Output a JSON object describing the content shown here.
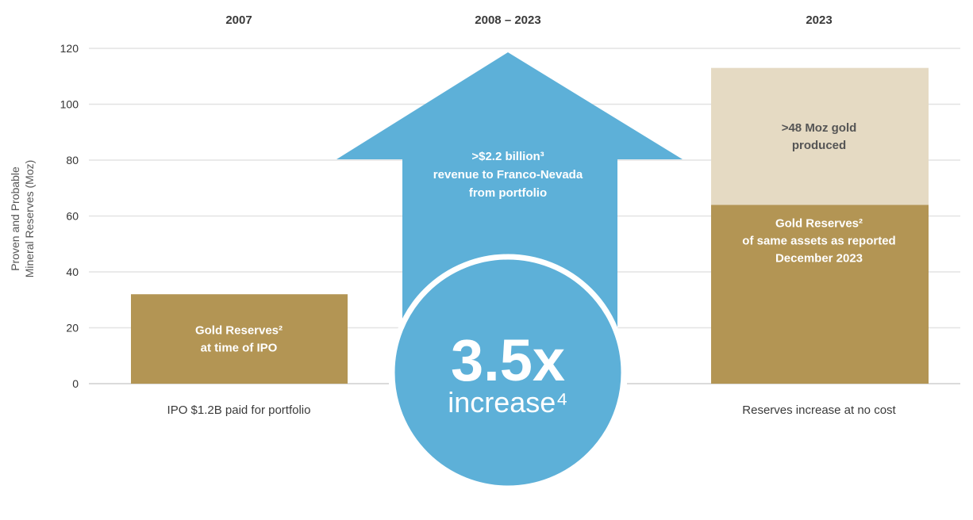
{
  "chart_data": {
    "type": "bar",
    "ylabel_lines": [
      "Proven and Probable",
      "Mineral Reserves (Moz)"
    ],
    "ylim": [
      0,
      120
    ],
    "yticks": [
      0,
      20,
      40,
      60,
      80,
      100,
      120
    ],
    "grid": true,
    "categories": [
      "2007",
      "2008 – 2023",
      "2023"
    ],
    "series": [
      {
        "values": [
          32,
          null,
          64
        ],
        "label_lines": [
          [
            "Gold Reserves²",
            "at time of IPO"
          ],
          null,
          [
            "Gold Reserves²",
            "of same assets as reported",
            "December 2023"
          ]
        ]
      },
      {
        "values": [
          null,
          null,
          49
        ],
        "label_lines": [
          null,
          null,
          [
            ">48 Moz gold",
            "produced"
          ]
        ]
      }
    ],
    "category_notes": [
      "IPO $1.2B paid for portfolio",
      "",
      "Reserves increase at no cost"
    ],
    "arrow": {
      "text_lines": [
        ">$2.2 billion³",
        "revenue to Franco-Nevada",
        "from portfolio"
      ]
    },
    "callout": {
      "value": "3.5x",
      "label": "increase⁴"
    },
    "colors": {
      "gold": "#b39554",
      "gold_light": "#e5dac3",
      "blue": "#5db0d8",
      "grid": "#e3e3e3",
      "text": "#333333"
    }
  }
}
